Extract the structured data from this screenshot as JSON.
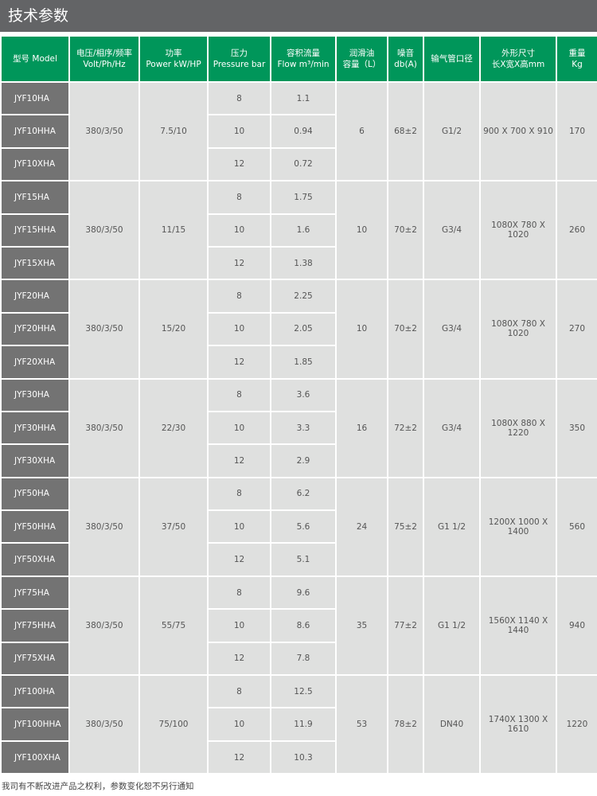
{
  "title": "技术参数",
  "headers": [
    [
      "型号 Model"
    ],
    [
      "电压/相序/频率",
      "Volt/Ph/Hz"
    ],
    [
      "功率",
      "Power kW/HP"
    ],
    [
      "压力",
      "Pressure bar"
    ],
    [
      "容积流量",
      "Flow m³/min"
    ],
    [
      "润滑油",
      "容量（L）"
    ],
    [
      "噪音",
      "db(A)"
    ],
    [
      "输气管口径"
    ],
    [
      "外形尺寸",
      "长X宽X高mm"
    ],
    [
      "重量",
      "Kg"
    ]
  ],
  "groups": [
    {
      "models": [
        "JYF10HA",
        "JYF10HHA",
        "JYF10XHA"
      ],
      "volt": "380/3/50",
      "power": "7.5/10",
      "pressure": [
        "8",
        "10",
        "12"
      ],
      "flow": [
        "1.1",
        "0.94",
        "0.72"
      ],
      "oil": "6",
      "noise": "68±2",
      "pipe": "G1/2",
      "size": "900 X 700 X 910",
      "weight": "170"
    },
    {
      "models": [
        "JYF15HA",
        "JYF15HHA",
        "JYF15XHA"
      ],
      "volt": "380/3/50",
      "power": "11/15",
      "pressure": [
        "8",
        "10",
        "12"
      ],
      "flow": [
        "1.75",
        "1.6",
        "1.38"
      ],
      "oil": "10",
      "noise": "70±2",
      "pipe": "G3/4",
      "size": "1080X 780 X 1020",
      "weight": "260"
    },
    {
      "models": [
        "JYF20HA",
        "JYF20HHA",
        "JYF20XHA"
      ],
      "volt": "380/3/50",
      "power": "15/20",
      "pressure": [
        "8",
        "10",
        "12"
      ],
      "flow": [
        "2.25",
        "2.05",
        "1.85"
      ],
      "oil": "10",
      "noise": "70±2",
      "pipe": "G3/4",
      "size": "1080X 780 X 1020",
      "weight": "270"
    },
    {
      "models": [
        "JYF30HA",
        "JYF30HHA",
        "JYF30XHA"
      ],
      "volt": "380/3/50",
      "power": "22/30",
      "pressure": [
        "8",
        "10",
        "12"
      ],
      "flow": [
        "3.6",
        "3.3",
        "2.9"
      ],
      "oil": "16",
      "noise": "72±2",
      "pipe": "G3/4",
      "size": "1080X 880 X 1220",
      "weight": "350"
    },
    {
      "models": [
        "JYF50HA",
        "JYF50HHA",
        "JYF50XHA"
      ],
      "volt": "380/3/50",
      "power": "37/50",
      "pressure": [
        "8",
        "10",
        "12"
      ],
      "flow": [
        "6.2",
        "5.6",
        "5.1"
      ],
      "oil": "24",
      "noise": "75±2",
      "pipe": "G1 1/2",
      "size": "1200X 1000 X 1400",
      "weight": "560"
    },
    {
      "models": [
        "JYF75HA",
        "JYF75HHA",
        "JYF75XHA"
      ],
      "volt": "380/3/50",
      "power": "55/75",
      "pressure": [
        "8",
        "10",
        "12"
      ],
      "flow": [
        "9.6",
        "8.6",
        "7.8"
      ],
      "oil": "35",
      "noise": "77±2",
      "pipe": "G1 1/2",
      "size": "1560X 1140 X 1440",
      "weight": "940"
    },
    {
      "models": [
        "JYF100HA",
        "JYF100HHA",
        "JYF100XHA"
      ],
      "volt": "380/3/50",
      "power": "75/100",
      "pressure": [
        "8",
        "10",
        "12"
      ],
      "flow": [
        "12.5",
        "11.9",
        "10.3"
      ],
      "oil": "53",
      "noise": "78±2",
      "pipe": "DN40",
      "size": "1740X 1300 X 1610",
      "weight": "1220"
    }
  ],
  "footer": "我司有不断改进产品之权利，参数变化恕不另行通知",
  "colors": {
    "header": "#00965a",
    "title_bar": "#636466",
    "model_cell": "#737373",
    "cell": "#dfe0df"
  }
}
